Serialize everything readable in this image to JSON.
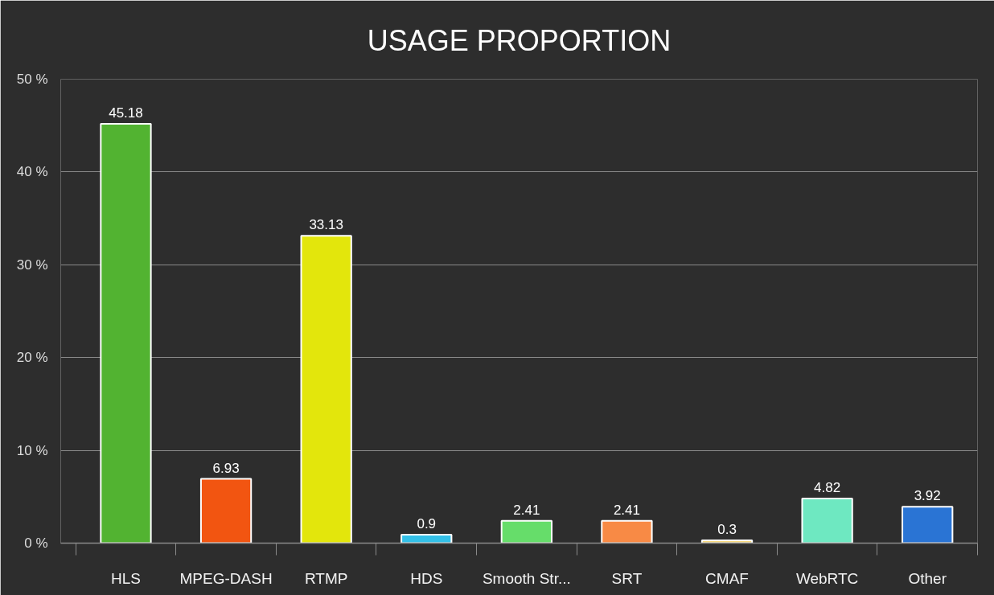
{
  "chart_data": {
    "type": "bar",
    "title": "USAGE PROPORTION",
    "categories": [
      "HLS",
      "MPEG-DASH",
      "RTMP",
      "HDS",
      "Smooth Str...",
      "SRT",
      "CMAF",
      "WebRTC",
      "Other"
    ],
    "values": [
      45.18,
      6.93,
      33.13,
      0.9,
      2.41,
      2.41,
      0.3,
      4.82,
      3.92
    ],
    "colors": [
      "#52b331",
      "#f25511",
      "#e3e60c",
      "#33c0e8",
      "#66dd6a",
      "#f88a45",
      "#f5d77a",
      "#6ee8c1",
      "#2a74d4"
    ],
    "ylim": [
      0,
      50
    ],
    "yticks": [
      {
        "value": 0,
        "label": "0 %"
      },
      {
        "value": 10,
        "label": "10 %"
      },
      {
        "value": 20,
        "label": "20 %"
      },
      {
        "value": 30,
        "label": "30 %"
      },
      {
        "value": 40,
        "label": "40 %"
      },
      {
        "value": 50,
        "label": "50 %"
      }
    ],
    "grid": "y",
    "data_labels": true
  }
}
